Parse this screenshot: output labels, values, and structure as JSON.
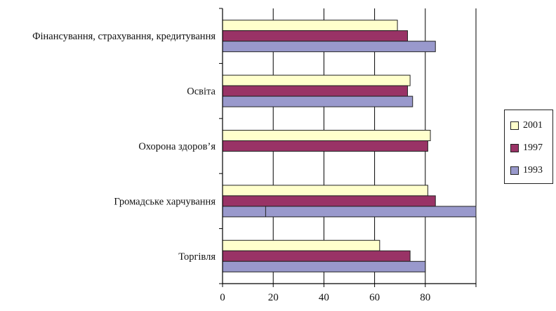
{
  "chart_data": {
    "type": "bar",
    "orientation": "horizontal",
    "categories": [
      "Фінансування, страхування, кредитування",
      "Освіта",
      "Охорона здоров’я",
      "Громадське харчування",
      "Торгівля"
    ],
    "series": [
      {
        "name": "2001",
        "color": "#ffffcc",
        "values": [
          69,
          74,
          82,
          81,
          62
        ]
      },
      {
        "name": "1997",
        "color": "#993366",
        "values": [
          73,
          73,
          81,
          84,
          74
        ]
      },
      {
        "name": "1993",
        "color": "#9999cc",
        "values": [
          84,
          75,
          null,
          100,
          80
        ],
        "segment_marks": [
          null,
          null,
          null,
          17,
          null
        ]
      }
    ],
    "xlim": [
      0,
      100
    ],
    "xticks": [
      0,
      20,
      40,
      60,
      80
    ],
    "grid": "vertical",
    "legend_position": "right",
    "title": "",
    "xlabel": "",
    "ylabel": ""
  },
  "legend": {
    "items": [
      {
        "label": "2001",
        "color": "#ffffcc"
      },
      {
        "label": "1997",
        "color": "#993366"
      },
      {
        "label": "1993",
        "color": "#9999cc"
      }
    ]
  }
}
